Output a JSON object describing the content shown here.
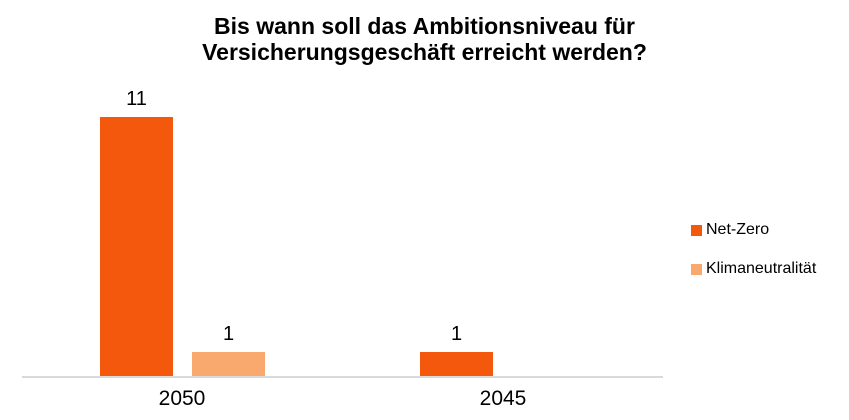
{
  "chart_data": {
    "type": "bar",
    "title": "Bis wann soll das Ambitionsniveau für Versicherungsgeschäft erreicht werden?",
    "categories": [
      "2050",
      "2045"
    ],
    "series": [
      {
        "name": "Net-Zero",
        "color": "#F4580D",
        "values": [
          11,
          1
        ]
      },
      {
        "name": "Klimaneutralität",
        "color": "#FAA96E",
        "values": [
          1,
          0
        ]
      }
    ],
    "ylim": [
      0,
      11
    ],
    "xlabel": "",
    "ylabel": "",
    "grid": false,
    "y_axis_visible": false,
    "data_labels": [
      [
        "11",
        "1"
      ],
      [
        "1",
        ""
      ]
    ],
    "legend_position": "right"
  },
  "colors": {
    "axis_line": "#D9D9D9",
    "background": "#FFFFFF",
    "text": "#000000"
  }
}
